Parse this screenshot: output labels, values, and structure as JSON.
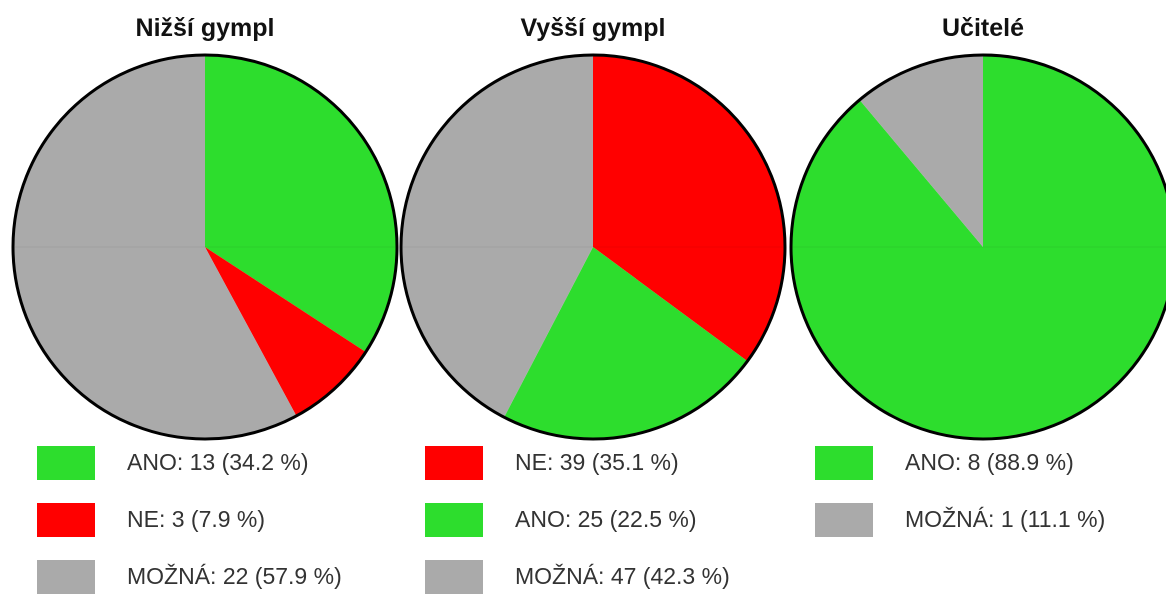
{
  "chart_data": [
    {
      "type": "pie",
      "title": "Nižší gympl",
      "categories": [
        "ANO",
        "NE",
        "MOŽNÁ"
      ],
      "values": [
        13,
        3,
        22
      ],
      "percents": [
        34.2,
        7.9,
        57.9
      ],
      "colors": [
        "#2ddd2d",
        "#ff0000",
        "#aaaaaa"
      ],
      "legend_labels": [
        "ANO: 13 (34.2 %)",
        "NE: 3 (7.9 %)",
        "MOŽNÁ: 22 (57.9 %)"
      ],
      "legend_placement": "bottom"
    },
    {
      "type": "pie",
      "title": "Vyšší gympl",
      "categories": [
        "NE",
        "ANO",
        "MOŽNÁ"
      ],
      "values": [
        39,
        25,
        47
      ],
      "percents": [
        35.1,
        22.5,
        42.3
      ],
      "colors": [
        "#ff0000",
        "#2ddd2d",
        "#aaaaaa"
      ],
      "legend_labels": [
        "NE: 39 (35.1 %)",
        "ANO: 25 (22.5 %)",
        "MOŽNÁ: 47 (42.3 %)"
      ],
      "legend_placement": "bottom"
    },
    {
      "type": "pie",
      "title": "Učitelé",
      "categories": [
        "ANO",
        "MOŽNÁ"
      ],
      "values": [
        8,
        1
      ],
      "percents": [
        88.9,
        11.1
      ],
      "colors": [
        "#2ddd2d",
        "#aaaaaa"
      ],
      "legend_labels": [
        "ANO: 8 (88.9 %)",
        "MOŽNÁ: 1 (11.1 %)"
      ],
      "legend_placement": "bottom"
    }
  ]
}
